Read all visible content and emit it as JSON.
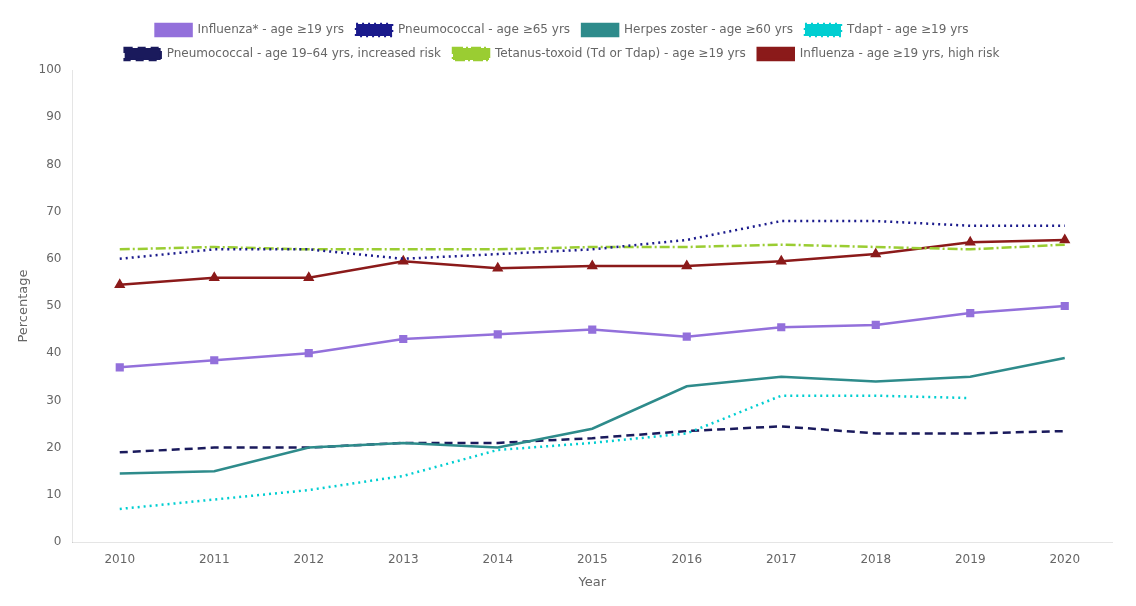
{
  "chart_data": {
    "type": "line",
    "x": [
      2010,
      2011,
      2012,
      2013,
      2014,
      2015,
      2016,
      2017,
      2018,
      2019,
      2020
    ],
    "series": [
      {
        "name": "Influenza* - age ≥19 yrs",
        "color": "#9370DB",
        "line_style": "solid",
        "marker": "square",
        "values": [
          37,
          38.5,
          40,
          43,
          44,
          45,
          43.5,
          45.5,
          46,
          48.5,
          50
        ]
      },
      {
        "name": "Pneumococcal - age ≥65 yrs",
        "color": "#1a1a8c",
        "line_style": "dotted",
        "values": [
          60,
          62,
          62,
          60,
          61,
          62,
          64,
          68,
          68,
          67,
          67
        ]
      },
      {
        "name": "Herpes zoster - age ≥60 yrs",
        "color": "#2e8b8b",
        "line_style": "solid",
        "values": [
          14.5,
          15,
          20,
          21,
          20,
          24,
          33,
          35,
          34,
          35,
          39
        ]
      },
      {
        "name": "Tdap† - age ≥19 yrs",
        "color": "#00CED1",
        "line_style": "dotted",
        "values": [
          7,
          9,
          11,
          14,
          19.5,
          21,
          23,
          31,
          31,
          30.5,
          null
        ]
      },
      {
        "name": "Pneumococcal - age 19–64 yrs, increased risk",
        "color": "#1a1a5c",
        "line_style": "dashed",
        "values": [
          19,
          20,
          20,
          21,
          21,
          22,
          23.5,
          24.5,
          23,
          23,
          23.5
        ]
      },
      {
        "name": "Tetanus-toxoid (Td or Tdap) - age ≥19 yrs",
        "color": "#9ACD32",
        "line_style": "dashdot",
        "values": [
          62,
          62.5,
          62,
          62,
          62,
          62.5,
          62.5,
          63,
          62.5,
          62,
          63
        ]
      },
      {
        "name": "Influenza - age ≥19 yrs, high risk",
        "color": "#8B1a1a",
        "line_style": "solid",
        "marker": "triangle",
        "values": [
          54.5,
          56,
          56,
          59.5,
          58,
          58.5,
          58.5,
          59.5,
          61,
          63.5,
          64
        ]
      }
    ],
    "xlabel": "Year",
    "ylabel": "Percentage",
    "xlim": [
      2009.5,
      2020.5
    ],
    "xticks": [
      2010,
      2011,
      2012,
      2013,
      2014,
      2015,
      2016,
      2017,
      2018,
      2019,
      2020
    ],
    "ylim": [
      0,
      100
    ],
    "yticks": [
      0,
      10,
      20,
      30,
      40,
      50,
      60,
      70,
      80,
      90,
      100
    ],
    "grid": false,
    "legend": "top"
  }
}
